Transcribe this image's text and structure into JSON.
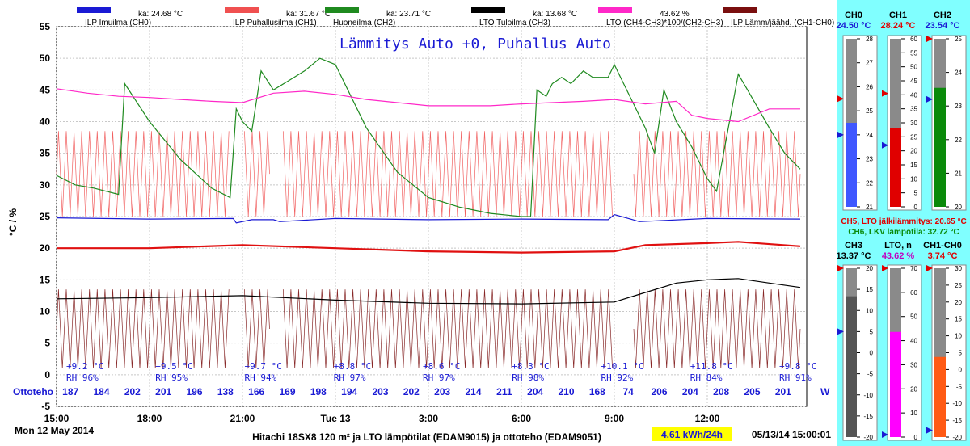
{
  "chart_data": {
    "type": "line",
    "title": "Lämmitys Auto +0, Puhallus Auto",
    "ylabel": "°C / %",
    "ylim": [
      -5,
      55
    ],
    "yticks": [
      -5,
      0,
      5,
      10,
      15,
      20,
      25,
      30,
      35,
      40,
      45,
      50,
      55
    ],
    "xticks": [
      {
        "label": "15:00",
        "h": 0
      },
      {
        "label": "18:00",
        "h": 3
      },
      {
        "label": "21:00",
        "h": 6
      },
      {
        "label": "Tue 13",
        "h": 9
      },
      {
        "label": "3:00",
        "h": 12
      },
      {
        "label": "6:00",
        "h": 15
      },
      {
        "label": "9:00",
        "h": 18
      },
      {
        "label": "12:00",
        "h": 21
      }
    ],
    "xrange_hours": [
      0,
      24
    ],
    "grid": true,
    "legend": [
      {
        "label": "ILP Imuilma (CH0)",
        "stat": "ka: 24.68 °C",
        "color": "#1a1ad4"
      },
      {
        "label": "ILP Puhallusilma (CH1)",
        "stat": "ka: 31.67 °C",
        "color": "#f05050"
      },
      {
        "label": "Huoneilma (CH2)",
        "stat": "ka: 23.71 °C",
        "color": "#1f8a1f"
      },
      {
        "label": "LTO Tuloilma (CH3)",
        "stat": "ka: 13.68 °C",
        "color": "#000000"
      },
      {
        "label": "LTO (CH4-CH3)*100/(CH2-CH3)",
        "stat": "43.62 %",
        "color": "#ff28c8"
      },
      {
        "label": "ILP Lämm/jäähd. (CH1-CH0)",
        "stat": "",
        "color": "#7a0f0f"
      }
    ],
    "series": [
      {
        "name": "ILP Imuilma (CH0)",
        "color": "#1a1ad4",
        "h": [
          0,
          3,
          5.7,
          5.8,
          6.3,
          7.0,
          7.2,
          9,
          12,
          15,
          17.8,
          18.0,
          18.6,
          18.8,
          21,
          24
        ],
        "v": [
          24.8,
          24.6,
          24.7,
          24.0,
          24.5,
          24.5,
          24.2,
          24.7,
          24.5,
          24.6,
          24.5,
          25.3,
          24.5,
          24.2,
          24.7,
          24.6
        ]
      },
      {
        "name": "Huoneilma (CH2)",
        "color": "#1f8a1f",
        "h": [
          0,
          0.6,
          1.2,
          2.0,
          2.2,
          3.0,
          4.0,
          5.0,
          5.6,
          5.8,
          6.0,
          6.3,
          6.6,
          7.0,
          7.5,
          8.0,
          8.5,
          9.0,
          10.0,
          11.0,
          12.0,
          13.0,
          14.0,
          15.0,
          15.3,
          15.5,
          15.8,
          16.0,
          16.3,
          16.6,
          17.0,
          17.3,
          17.8,
          18.0,
          18.3,
          18.6,
          19.0,
          19.3,
          19.6,
          20.0,
          20.5,
          21.0,
          21.3,
          22.0,
          22.3,
          23.0,
          23.5,
          24.0
        ],
        "v": [
          31.5,
          30,
          29.5,
          28.5,
          46.0,
          40.0,
          34.0,
          29.5,
          28.0,
          42.0,
          40.0,
          38.5,
          48.0,
          45.0,
          46.5,
          48.0,
          50.0,
          49.0,
          39.0,
          32.0,
          28.0,
          26.5,
          25.5,
          25.0,
          25.0,
          45.0,
          44.0,
          46.0,
          47.0,
          46.0,
          48.0,
          47.0,
          47.0,
          49.0,
          46.0,
          43.0,
          39.0,
          35.0,
          45.0,
          40.0,
          36.0,
          31.0,
          29.0,
          47.5,
          45.0,
          39.0,
          35.0,
          32.5
        ]
      },
      {
        "name": "LTO Tuloilma (CH3)",
        "color": "#000000",
        "h": [
          0,
          3,
          6,
          9,
          12,
          15,
          18,
          19,
          20,
          21,
          22,
          23,
          24
        ],
        "v": [
          12.0,
          12.2,
          12.5,
          11.8,
          11.3,
          11.2,
          11.5,
          13.0,
          14.5,
          15.0,
          15.2,
          14.5,
          13.8
        ]
      },
      {
        "name": "LTO (CH4-CH3)*100/(CH2-CH3)",
        "color": "#ff28c8",
        "h": [
          0,
          1,
          2,
          3,
          4,
          5,
          6,
          7,
          8,
          9,
          10,
          11,
          12,
          13,
          14,
          15,
          16,
          17,
          18,
          19,
          20,
          20.5,
          21,
          22,
          23,
          24
        ],
        "v": [
          45.2,
          44.5,
          44.0,
          43.8,
          43.5,
          43.2,
          43.0,
          44.5,
          44.8,
          44.3,
          43.5,
          43.0,
          42.5,
          42.5,
          42.5,
          42.8,
          43.0,
          43.2,
          43.5,
          42.8,
          43.2,
          41.0,
          40.5,
          40.0,
          42.0,
          42.0
        ]
      },
      {
        "name": "CH5 (red thick)",
        "color": "#e01010",
        "h": [
          0,
          3,
          6,
          9,
          12,
          15,
          18,
          19,
          21,
          22,
          24
        ],
        "v": [
          20.0,
          20.0,
          20.5,
          20.0,
          19.5,
          19.3,
          19.5,
          20.5,
          20.8,
          21.0,
          20.3
        ]
      }
    ],
    "oscillating_series": [
      {
        "name": "ILP Puhallusilma (CH1)",
        "color": "#f05050",
        "low": 25,
        "high": 38.5,
        "period_h": 0.25
      },
      {
        "name": "ILP Lämm/jäähd. (CH1-CH0)",
        "color": "#7a0f0f",
        "low": 1,
        "high": 13.5,
        "period_h": 0.25
      }
    ],
    "gaps_hours": [
      [
        5.6,
        6.0
      ],
      [
        6.9,
        7.3
      ],
      [
        18.0,
        18.6
      ]
    ],
    "weather": [
      {
        "temp": "+9.2 °C",
        "rh": "RH 96%"
      },
      {
        "temp": "+9.5 °C",
        "rh": "RH 95%"
      },
      {
        "temp": "+9.7 °C",
        "rh": "RH 94%"
      },
      {
        "temp": "+8.8 °C",
        "rh": "RH 97%"
      },
      {
        "temp": "+8.6 °C",
        "rh": "RH 97%"
      },
      {
        "temp": "+8.3 °C",
        "rh": "RH 98%"
      },
      {
        "temp": "+10.1 °C",
        "rh": "RH 92%"
      },
      {
        "temp": "+11.8 °C",
        "rh": "RH 84%"
      },
      {
        "temp": "+9.8 °C",
        "rh": "RH 91%"
      }
    ],
    "ottoteho": {
      "label": "Ottoteho",
      "unit": "W",
      "values": [
        "187",
        "184",
        "202",
        "201",
        "196",
        "138",
        "166",
        "169",
        "198",
        "194",
        "203",
        "202",
        "203",
        "214",
        "211",
        "204",
        "210",
        "168",
        "74",
        "206",
        "204",
        "208",
        "205",
        "201"
      ]
    }
  },
  "footer": {
    "date": "Mon 12 May 2014",
    "caption": "Hitachi 18SX8 120 m² ja LTO lämpötilat (EDAM9015) ja ottoteho (EDAM9051)",
    "energy": "4.61  kWh/24h",
    "timestamp": "05/13/14 15:00:01"
  },
  "gauges_top": [
    {
      "title": "CH0",
      "value": "24.50 °C",
      "color": "#3f57ff",
      "valcolor": "#1a1ad4",
      "min": 21,
      "max": 28,
      "level": 24.5,
      "marker_red": 25.5,
      "marker_blue": 24.0,
      "ticks": [
        "28",
        "27",
        "26",
        "25",
        "24",
        "23",
        "22",
        "21"
      ]
    },
    {
      "title": "CH1",
      "value": "28.24 °C",
      "color": "#e00000",
      "valcolor": "#e00000",
      "min": 0,
      "max": 60,
      "level": 28.24,
      "marker_red": 40.5,
      "marker_blue": 22.0,
      "ticks": [
        "60",
        "55",
        "50",
        "45",
        "40",
        "35",
        "30",
        "25",
        "20",
        "15",
        "10",
        "5",
        "0"
      ]
    },
    {
      "title": "CH2",
      "value": "23.54 °C",
      "color": "#0a8a0a",
      "valcolor": "#1a1ad4",
      "min": 20,
      "max": 25,
      "level": 23.54,
      "marker_red": 25.0,
      "marker_blue": 23.2,
      "ticks": [
        "25",
        "24",
        "23",
        "22",
        "21",
        "20"
      ]
    }
  ],
  "ch_extra": [
    {
      "text": "CH5, LTO jälkilämmitys: 20.65 °C",
      "color": "#e00000"
    },
    {
      "text": "CH6, LKV lämpötila: 32.72 °C",
      "color": "#0a8a0a"
    }
  ],
  "gauges_bottom": [
    {
      "title": "CH3",
      "value": "13.37 °C",
      "color": "#555555",
      "valcolor": "#000000",
      "min": -20,
      "max": 20,
      "level": 13.37,
      "marker_red": 20.0,
      "marker_blue": 5.0,
      "ticks": [
        "20",
        "15",
        "10",
        "5",
        "0",
        "-5",
        "-10",
        "-15",
        "-20"
      ]
    },
    {
      "title": "LTO, n",
      "value": "43.62 %",
      "color": "#ff00ff",
      "valcolor": "#c000c0",
      "min": 0,
      "max": 70,
      "level": 43.62,
      "marker_red": 70.0,
      "marker_blue": 1.0,
      "ticks": [
        "70",
        "60",
        "50",
        "40",
        "30",
        "20",
        "10",
        "0"
      ]
    },
    {
      "title": "CH1-CH0",
      "value": "3.74 °C",
      "color": "#ff5a14",
      "valcolor": "#e00000",
      "min": -20,
      "max": 30,
      "level": 3.74,
      "marker_red": 30.0,
      "marker_blue": -18.0,
      "ticks": [
        "30",
        "25",
        "20",
        "15",
        "10",
        "5",
        "0",
        "-5",
        "-10",
        "-15",
        "-20"
      ]
    }
  ]
}
